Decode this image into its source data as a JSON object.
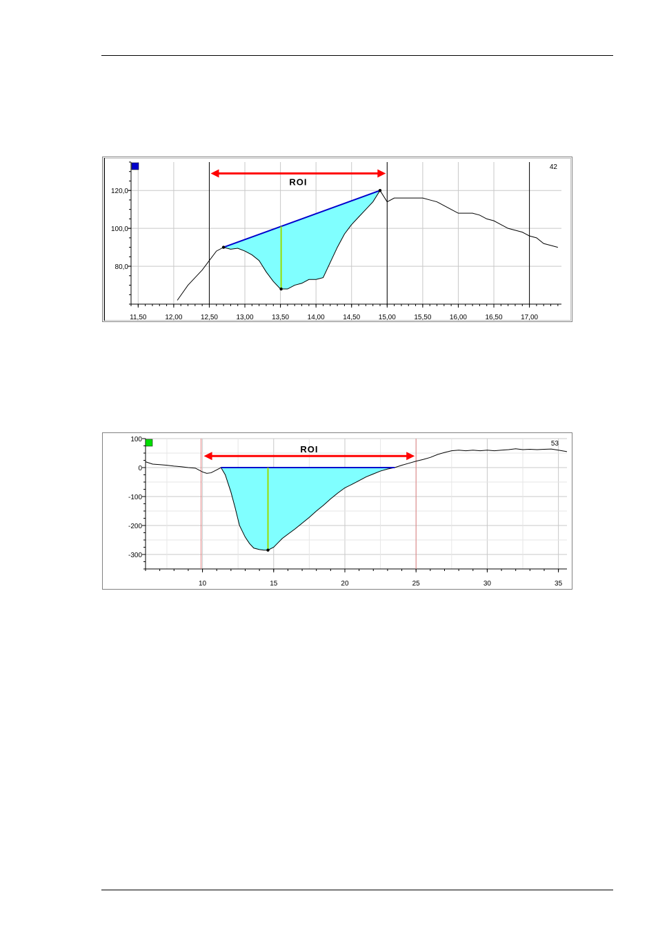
{
  "page": {
    "top_rule": "",
    "bottom_rule": ""
  },
  "chart_data": [
    {
      "type": "line",
      "title": "",
      "xlabel": "",
      "ylabel": "",
      "xlim": [
        11.4,
        17.45
      ],
      "ylim": [
        60,
        135
      ],
      "x_ticks": [
        "11,50",
        "12,00",
        "12,50",
        "13,00",
        "13,50",
        "14,00",
        "14,50",
        "15,00",
        "15,50",
        "16,00",
        "16,50",
        "17,00"
      ],
      "x_tick_values": [
        11.5,
        12.0,
        12.5,
        13.0,
        13.5,
        14.0,
        14.5,
        15.0,
        15.5,
        16.0,
        16.5,
        17.0
      ],
      "y_ticks": [
        "80,0",
        "100,0",
        "120,0"
      ],
      "y_tick_values": [
        80,
        100,
        120
      ],
      "grid": true,
      "corner_label": "42",
      "marker_color": "#0000cc",
      "roi": {
        "label": "ROI",
        "x_start": 12.5,
        "x_end": 15.0,
        "arrow_y": 129,
        "color": "#ff0000"
      },
      "cursor_x": [
        12.5,
        15.0,
        17.0
      ],
      "baseline": {
        "x1": 12.7,
        "y1": 90,
        "x2": 14.9,
        "y2": 120,
        "color": "#0000cc"
      },
      "min_marker": {
        "x": 13.51,
        "y": 68,
        "color": "#99dd00"
      },
      "fill_color": "#80ffff",
      "series": [
        {
          "color": "#000000",
          "x": [
            12.05,
            12.2,
            12.3,
            12.4,
            12.5,
            12.6,
            12.7,
            12.8,
            12.9,
            13.0,
            13.1,
            13.2,
            13.3,
            13.4,
            13.5,
            13.6,
            13.7,
            13.8,
            13.9,
            14.0,
            14.1,
            14.2,
            14.3,
            14.4,
            14.5,
            14.6,
            14.7,
            14.8,
            14.9,
            15.0,
            15.1,
            15.2,
            15.3,
            15.4,
            15.5,
            15.6,
            15.7,
            15.8,
            15.9,
            16.0,
            16.1,
            16.2,
            16.3,
            16.4,
            16.5,
            16.6,
            16.7,
            16.8,
            16.9,
            17.0,
            17.1,
            17.2,
            17.3,
            17.4
          ],
          "y": [
            62,
            70,
            74,
            78,
            83,
            88,
            90,
            89,
            89.5,
            88,
            86,
            83,
            77,
            72,
            68,
            68,
            70,
            71,
            73,
            73,
            74,
            82,
            90,
            97,
            102,
            106,
            110,
            114,
            120,
            114,
            116,
            116,
            116,
            116,
            116,
            115,
            114,
            112,
            110,
            108,
            108,
            108,
            107,
            105,
            104,
            102,
            100,
            99,
            98,
            96,
            95,
            92,
            91,
            90
          ]
        }
      ]
    },
    {
      "type": "line",
      "title": "",
      "xlabel": "",
      "ylabel": "",
      "xlim": [
        6,
        35.6
      ],
      "ylim": [
        -350,
        100
      ],
      "x_ticks": [
        "10",
        "15",
        "20",
        "25",
        "30",
        "35"
      ],
      "x_tick_values": [
        10,
        15,
        20,
        25,
        30,
        35
      ],
      "y_ticks": [
        "100",
        "0",
        "-100",
        "-200",
        "-300"
      ],
      "y_tick_values": [
        100,
        0,
        -100,
        -200,
        -300
      ],
      "grid": true,
      "corner_label": "53",
      "marker_color": "#00dd00",
      "roi": {
        "label": "ROI",
        "x_start": 10,
        "x_end": 25,
        "arrow_y": 40,
        "color": "#ff0000"
      },
      "cursor_x": [
        9.9,
        25.0
      ],
      "baseline": {
        "x1": 11.3,
        "y1": 0,
        "x2": 23.5,
        "y2": 0,
        "color": "#0000cc"
      },
      "min_marker": {
        "x": 14.6,
        "y": -285,
        "color": "#99dd00"
      },
      "fill_color": "#80ffff",
      "series": [
        {
          "color": "#000000",
          "x": [
            6.0,
            6.5,
            7.0,
            7.5,
            8.0,
            8.5,
            9.0,
            9.5,
            10.0,
            10.3,
            10.6,
            11.0,
            11.3,
            11.6,
            12.0,
            12.3,
            12.6,
            13.0,
            13.3,
            13.6,
            14.0,
            14.3,
            14.6,
            15.0,
            15.3,
            15.6,
            16.0,
            16.5,
            17.0,
            17.5,
            18.0,
            18.5,
            19.0,
            19.5,
            20.0,
            20.5,
            21.0,
            21.5,
            22.0,
            22.5,
            23.0,
            23.5,
            24.0,
            24.5,
            25.0,
            25.5,
            26.0,
            26.5,
            27.0,
            27.5,
            28.0,
            28.5,
            29.0,
            29.5,
            30.0,
            30.5,
            31.0,
            31.5,
            32.0,
            32.5,
            33.0,
            33.5,
            34.0,
            34.5,
            35.0,
            35.6
          ],
          "y": [
            20,
            12,
            10,
            8,
            5,
            3,
            0,
            -2,
            -15,
            -20,
            -18,
            -8,
            0,
            -25,
            -85,
            -140,
            -200,
            -240,
            -262,
            -278,
            -283,
            -285,
            -285,
            -275,
            -260,
            -245,
            -230,
            -212,
            -192,
            -172,
            -150,
            -130,
            -108,
            -88,
            -70,
            -58,
            -45,
            -32,
            -22,
            -12,
            -5,
            0,
            8,
            15,
            22,
            28,
            35,
            45,
            52,
            58,
            60,
            58,
            60,
            58,
            60,
            58,
            60,
            62,
            65,
            62,
            63,
            62,
            63,
            64,
            60,
            55
          ]
        }
      ]
    }
  ]
}
